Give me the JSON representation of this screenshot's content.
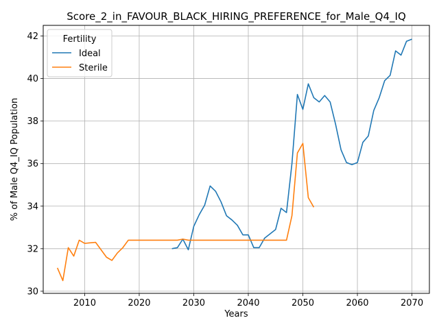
{
  "chart_data": {
    "type": "line",
    "title": "Score_2_in_FAVOUR_BLACK_HIRING_PREFERENCE_for_Male_Q4_IQ",
    "xlabel": "Years",
    "ylabel": "% of Male Q4_IQ Population",
    "xlim": [
      2002.4,
      2073.2
    ],
    "ylim": [
      29.9,
      42.5
    ],
    "xticks": [
      2010,
      2020,
      2030,
      2040,
      2050,
      2060,
      2070
    ],
    "yticks": [
      30,
      32,
      34,
      36,
      38,
      40,
      42
    ],
    "grid": true,
    "legend": {
      "title": "Fertility",
      "placement": "top-left"
    },
    "series": [
      {
        "name": "Ideal",
        "color": "#1f77b4",
        "x": [
          2026,
          2027,
          2028,
          2029,
          2030,
          2031,
          2032,
          2033,
          2034,
          2035,
          2036,
          2037,
          2038,
          2039,
          2040,
          2041,
          2042,
          2043,
          2044,
          2045,
          2046,
          2047,
          2048,
          2049,
          2050,
          2051,
          2052,
          2053,
          2054,
          2055,
          2056,
          2057,
          2058,
          2059,
          2060,
          2061,
          2062,
          2063,
          2064,
          2065,
          2066,
          2067,
          2068,
          2069,
          2070
        ],
        "values": [
          32.0,
          32.05,
          32.45,
          31.95,
          33.05,
          33.6,
          34.05,
          34.95,
          34.7,
          34.2,
          33.55,
          33.35,
          33.1,
          32.65,
          32.65,
          32.05,
          32.05,
          32.5,
          32.7,
          32.9,
          33.9,
          33.7,
          36.0,
          39.25,
          38.55,
          39.75,
          39.1,
          38.9,
          39.2,
          38.9,
          37.85,
          36.65,
          36.05,
          35.95,
          36.05,
          37.0,
          37.3,
          38.5,
          39.1,
          39.9,
          40.15,
          41.3,
          41.1,
          41.75,
          41.85
        ]
      },
      {
        "name": "Sterile",
        "color": "#ff7f0e",
        "x": [
          2005,
          2006,
          2007,
          2008,
          2009,
          2010,
          2012,
          2014,
          2015,
          2016,
          2017,
          2018,
          2020,
          2025,
          2027,
          2028,
          2029,
          2030,
          2035,
          2040,
          2045,
          2047,
          2048,
          2049,
          2050,
          2051,
          2052
        ],
        "values": [
          31.1,
          30.5,
          32.05,
          31.65,
          32.4,
          32.25,
          32.3,
          31.6,
          31.45,
          31.8,
          32.05,
          32.4,
          32.4,
          32.4,
          32.4,
          32.45,
          32.4,
          32.4,
          32.4,
          32.4,
          32.4,
          32.4,
          33.55,
          36.5,
          36.95,
          34.4,
          33.95
        ]
      }
    ]
  }
}
